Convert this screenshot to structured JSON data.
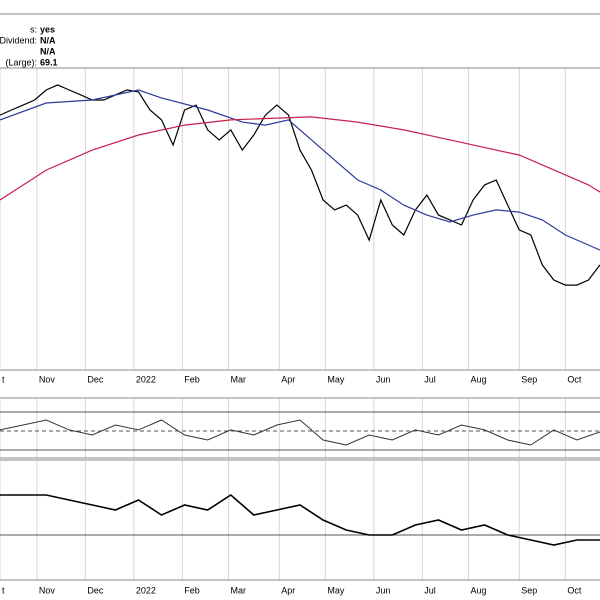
{
  "header": {
    "rows": [
      {
        "label": "s:",
        "value": "yes"
      },
      {
        "label": "al Dividend:",
        "value": "N/A"
      },
      {
        "value": "N/A"
      },
      {
        "label": "(Large):",
        "value": 69.1
      }
    ]
  },
  "chart_data": [
    {
      "type": "line",
      "xlim": [
        0,
        260
      ],
      "ylim": [
        0,
        100
      ],
      "xticks": [
        {
          "value": 0,
          "label": "t"
        },
        {
          "value": 16,
          "label": "Nov"
        },
        {
          "value": 37,
          "label": "Dec"
        },
        {
          "value": 58,
          "label": "2022"
        },
        {
          "value": 79,
          "label": "Feb"
        },
        {
          "value": 99,
          "label": "Mar"
        },
        {
          "value": 121,
          "label": "Apr"
        },
        {
          "value": 141,
          "label": "May"
        },
        {
          "value": 162,
          "label": "Jun"
        },
        {
          "value": 183,
          "label": "Jul"
        },
        {
          "value": 203,
          "label": "Aug"
        },
        {
          "value": 225,
          "label": "Sep"
        },
        {
          "value": 245,
          "label": "Oct"
        }
      ],
      "series": [
        {
          "color": "#000000",
          "width": 1.2,
          "x": [
            0,
            5,
            10,
            15,
            20,
            25,
            30,
            35,
            40,
            45,
            50,
            55,
            60,
            65,
            70,
            75,
            80,
            85,
            90,
            95,
            100,
            105,
            110,
            115,
            120,
            125,
            130,
            135,
            140,
            145,
            150,
            155,
            160,
            165,
            170,
            175,
            180,
            185,
            190,
            195,
            200,
            205,
            210,
            215,
            220,
            225,
            230,
            235,
            240,
            245,
            250,
            255,
            260
          ],
          "values": [
            84.4,
            86.1,
            87.7,
            89.4,
            92.7,
            94.4,
            92.7,
            91.1,
            89.4,
            89.4,
            91.1,
            92.7,
            92.1,
            86.1,
            82.8,
            74.5,
            86.1,
            87.7,
            79.5,
            76.2,
            79.5,
            72.8,
            77.8,
            84.4,
            87.7,
            84.4,
            72.8,
            66.2,
            56.3,
            53.0,
            54.6,
            51.3,
            43.0,
            56.3,
            48.0,
            44.7,
            53.0,
            57.9,
            51.3,
            49.7,
            48.0,
            56.3,
            61.3,
            62.9,
            54.6,
            46.4,
            44.7,
            34.8,
            29.8,
            28.1,
            28.1,
            29.8,
            34.8
          ]
        },
        {
          "color": "#2b3a99",
          "width": 1.2,
          "x": [
            0,
            20,
            40,
            60,
            70,
            90,
            105,
            115,
            125,
            135,
            145,
            155,
            165,
            175,
            185,
            195,
            205,
            215,
            225,
            235,
            245,
            255,
            260
          ],
          "values": [
            82.8,
            88.4,
            89.4,
            92.7,
            90.1,
            86.1,
            82.1,
            81.1,
            82.8,
            76.2,
            69.5,
            62.9,
            59.6,
            54.6,
            51.3,
            49.0,
            51.3,
            53.0,
            52.3,
            49.7,
            44.7,
            41.4,
            39.7
          ]
        },
        {
          "color": "#c8204a",
          "width": 1.2,
          "x": [
            0,
            20,
            40,
            60,
            80,
            100,
            120,
            135,
            155,
            175,
            195,
            215,
            225,
            235,
            245,
            255,
            260
          ],
          "values": [
            56.3,
            66.2,
            72.8,
            77.8,
            81.1,
            82.8,
            83.4,
            83.8,
            82.1,
            79.5,
            76.2,
            72.8,
            71.2,
            67.9,
            64.6,
            61.3,
            58.9
          ]
        }
      ]
    },
    {
      "type": "line",
      "xlim": [
        0,
        260
      ],
      "ylim": [
        21.6,
        84.7
      ],
      "levels": [
        30,
        50,
        70
      ],
      "series": [
        {
          "color": "#333333",
          "width": 1,
          "x": [
            0,
            10,
            20,
            30,
            40,
            50,
            60,
            70,
            80,
            90,
            100,
            110,
            120,
            130,
            140,
            150,
            160,
            170,
            180,
            190,
            200,
            210,
            220,
            230,
            240,
            250,
            260
          ],
          "values": [
            51.1,
            56.3,
            61.6,
            51.1,
            45.8,
            56.3,
            51.1,
            61.6,
            45.8,
            40.5,
            51.1,
            45.8,
            56.3,
            61.6,
            40.5,
            35.3,
            45.8,
            40.5,
            51.1,
            45.8,
            56.3,
            51.1,
            40.5,
            35.3,
            51.1,
            40.5,
            48.9
          ]
        }
      ]
    },
    {
      "type": "line",
      "xlim": [
        0,
        260
      ],
      "ylim": [
        -37.5,
        112.5
      ],
      "levels": [
        18.8
      ],
      "xticks": [
        {
          "value": 0,
          "label": "t"
        },
        {
          "value": 16,
          "label": "Nov"
        },
        {
          "value": 37,
          "label": "Dec"
        },
        {
          "value": 58,
          "label": "2022"
        },
        {
          "value": 79,
          "label": "Feb"
        },
        {
          "value": 99,
          "label": "Mar"
        },
        {
          "value": 121,
          "label": "Apr"
        },
        {
          "value": 141,
          "label": "May"
        },
        {
          "value": 162,
          "label": "Jun"
        },
        {
          "value": 183,
          "label": "Jul"
        },
        {
          "value": 203,
          "label": "Aug"
        },
        {
          "value": 225,
          "label": "Sep"
        },
        {
          "value": 245,
          "label": "Oct"
        }
      ],
      "series": [
        {
          "color": "#000000",
          "width": 1.6,
          "x": [
            0,
            10,
            20,
            30,
            40,
            50,
            60,
            70,
            80,
            90,
            100,
            110,
            120,
            130,
            140,
            150,
            160,
            170,
            180,
            190,
            200,
            210,
            220,
            230,
            240,
            250,
            260
          ],
          "values": [
            68.8,
            68.8,
            68.8,
            62.5,
            56.3,
            50,
            62.5,
            43.8,
            56.3,
            50,
            68.8,
            43.8,
            50,
            56.3,
            37.5,
            25,
            18.8,
            18.8,
            31.3,
            37.5,
            25,
            31.3,
            18.8,
            12.5,
            6.3,
            12.5,
            12.5
          ]
        }
      ]
    }
  ]
}
